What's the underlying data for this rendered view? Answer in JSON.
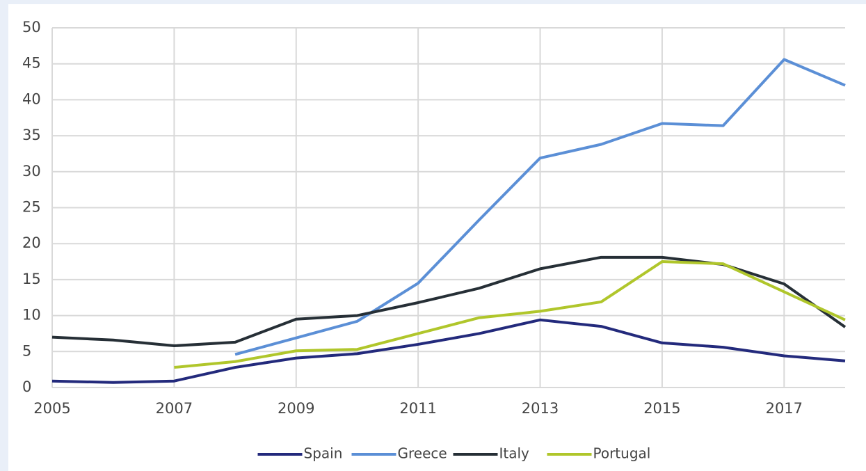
{
  "chart_data": {
    "type": "line",
    "x": [
      2005,
      2006,
      2007,
      2008,
      2009,
      2010,
      2011,
      2012,
      2013,
      2014,
      2015,
      2016,
      2017,
      2018
    ],
    "xlim": [
      2005,
      2018
    ],
    "xticks": [
      2005,
      2007,
      2009,
      2011,
      2013,
      2015,
      2017
    ],
    "ylim": [
      0,
      50
    ],
    "yticks": [
      0,
      5,
      10,
      15,
      20,
      25,
      30,
      35,
      40,
      45,
      50
    ],
    "grid": true,
    "legend": "bottom",
    "series": [
      {
        "name": "Spain",
        "color": "#232a7c",
        "values": [
          0.9,
          0.7,
          0.9,
          2.8,
          4.1,
          4.7,
          6.0,
          7.5,
          9.4,
          8.5,
          6.2,
          5.6,
          4.4,
          3.7
        ]
      },
      {
        "name": "Greece",
        "color": "#5b8fd6",
        "values": [
          null,
          null,
          null,
          4.6,
          6.9,
          9.2,
          14.5,
          23.3,
          31.9,
          33.8,
          36.7,
          36.4,
          45.6,
          42.0
        ]
      },
      {
        "name": "Italy",
        "color": "#262f36",
        "values": [
          7.0,
          6.6,
          5.8,
          6.3,
          9.5,
          10.0,
          11.8,
          13.8,
          16.5,
          18.1,
          18.1,
          17.1,
          14.4,
          8.4
        ]
      },
      {
        "name": "Portugal",
        "color": "#b0c62b",
        "values": [
          null,
          null,
          2.8,
          3.6,
          5.1,
          5.3,
          7.5,
          9.7,
          10.6,
          11.9,
          17.5,
          17.2,
          13.3,
          9.4
        ]
      }
    ]
  }
}
